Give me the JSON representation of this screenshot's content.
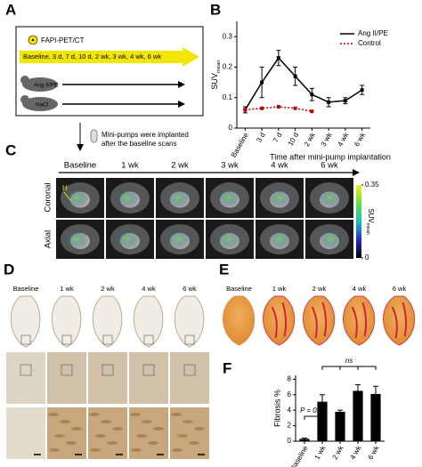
{
  "panels": [
    "A",
    "B",
    "C",
    "D",
    "E",
    "F"
  ],
  "schematic": {
    "modality": "FAPI-PET/CT",
    "timepoints": "Baseline, 3 d, 7 d, 10 d, 2 wk, 3 wk, 4 wk, 6 wk",
    "groups": [
      "Ang II/PE",
      "NaCl"
    ],
    "note": [
      "Mini-pumps were implanted",
      "after the baseline scans"
    ]
  },
  "chart_data": [
    {
      "type": "line",
      "categories": [
        "Baseline",
        "3 d",
        "7 d",
        "10 d",
        "2 wk",
        "3 wk",
        "4 wk",
        "6 wk"
      ],
      "series": [
        {
          "name": "Ang II/PE",
          "color": "#000000",
          "style": "solid",
          "values": [
            0.06,
            0.15,
            0.23,
            0.17,
            0.11,
            0.085,
            0.09,
            0.125
          ],
          "errors": [
            0.01,
            0.05,
            0.025,
            0.03,
            0.02,
            0.015,
            0.01,
            0.015
          ]
        },
        {
          "name": "Control",
          "color": "#c00000",
          "style": "dotted",
          "values": [
            0.06,
            0.065,
            0.07,
            0.065,
            0.055,
            null,
            null,
            null
          ]
        }
      ],
      "ylim": [
        0,
        0.35
      ],
      "yticks": [
        0,
        0.1,
        0.2,
        0.3
      ],
      "ylabel": "SUV",
      "ylabel_sub": "mean",
      "xlabel": "Time after mini-pump implantation",
      "legend": "upper right"
    },
    {
      "type": "bar",
      "categories": [
        "Baseline",
        "1 wk",
        "2 wk",
        "4 wk",
        "6 wk"
      ],
      "values": [
        0.3,
        5.1,
        3.8,
        6.5,
        6.1
      ],
      "errors": [
        0.1,
        0.9,
        0.2,
        0.8,
        1.0
      ],
      "color": "#000000",
      "ylim": [
        0,
        8.5
      ],
      "yticks": [
        0,
        2,
        4,
        6,
        8
      ],
      "ylabel": "Fibrosis %",
      "annotations": [
        "P = 0.01",
        "ns"
      ]
    }
  ],
  "imaging": {
    "timepoints": [
      "Baseline",
      "1 wk",
      "2 wk",
      "3 wk",
      "4 wk",
      "6 wk"
    ],
    "views": [
      "Coronal",
      "Axial"
    ],
    "marker": "H",
    "colorbar_ticks": [
      0,
      0.35
    ],
    "colorbar_label": "SUV",
    "colorbar_label_sub": "mean"
  },
  "histology": {
    "timepoints": [
      "Baseline",
      "1 wk",
      "2 wk",
      "4 wk",
      "6 wk"
    ]
  },
  "sirius_red": {
    "timepoints": [
      "Baseline",
      "1 wk",
      "2 wk",
      "4 wk",
      "6 wk"
    ]
  }
}
